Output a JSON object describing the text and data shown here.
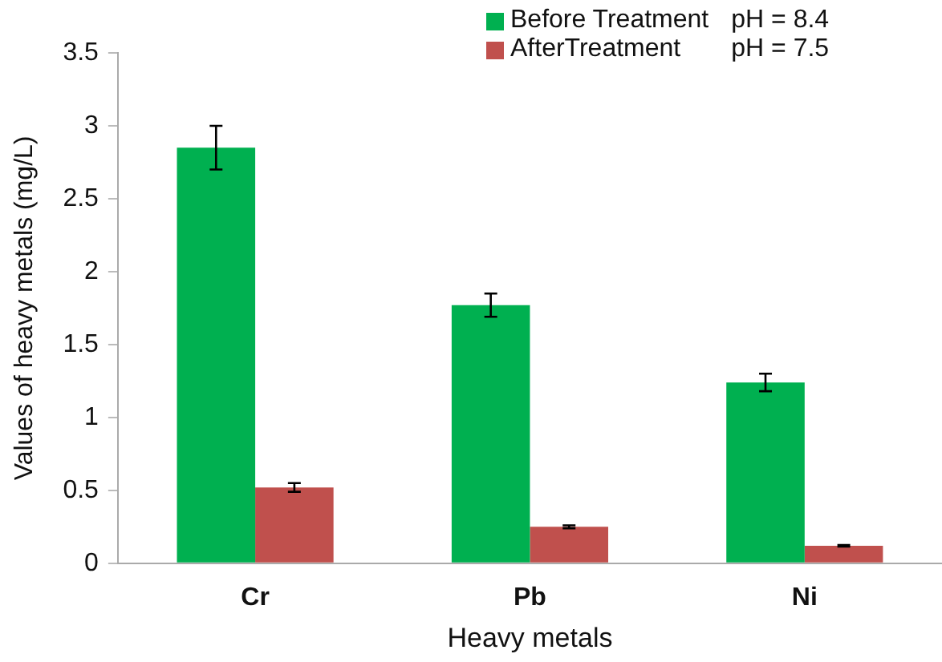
{
  "chart_data": {
    "type": "bar",
    "xlabel": "Heavy metals",
    "ylabel": "Values of heavy metals (mg/L)",
    "categories": [
      "Cr",
      "Pb",
      "Ni"
    ],
    "series": [
      {
        "name": "Before Treatment",
        "color": "#00b050",
        "values": [
          2.85,
          1.77,
          1.24
        ],
        "errors": [
          0.15,
          0.08,
          0.06
        ]
      },
      {
        "name": "AfterTreatment",
        "color": "#c0504d",
        "values": [
          0.52,
          0.25,
          0.12
        ],
        "errors": [
          0.03,
          0.01,
          0.005
        ]
      }
    ],
    "ylim": [
      0,
      3.5
    ],
    "yticks": [
      0,
      0.5,
      1,
      1.5,
      2,
      2.5,
      3,
      3.5
    ],
    "grid": false,
    "legend": "top right",
    "annotations": [
      "pH = 8.4",
      "pH = 7.5"
    ]
  }
}
